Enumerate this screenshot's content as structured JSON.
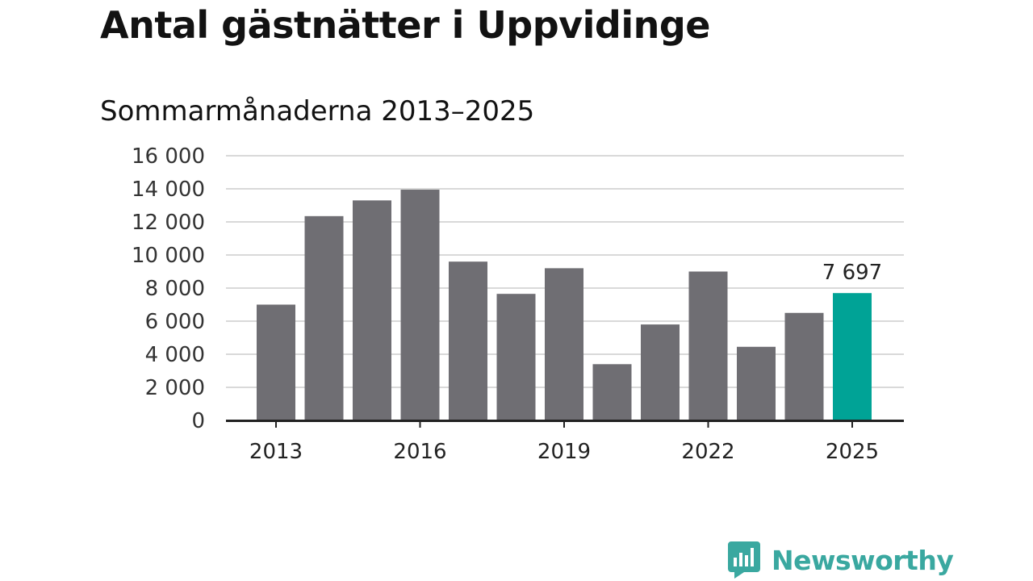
{
  "header": {
    "title": "Antal gästnätter i Uppvidinge",
    "subtitle": "Sommarmånaderna 2013–2025"
  },
  "brand": {
    "name": "Newsworthy",
    "color": "#3aa8a0"
  },
  "colors": {
    "bar": "#6f6e73",
    "highlight": "#00a396",
    "grid": "#d9d9d9",
    "axis": "#222222"
  },
  "chart_data": {
    "type": "bar",
    "title": "Antal gästnätter i Uppvidinge",
    "subtitle": "Sommarmånaderna 2013–2025",
    "xlabel": "",
    "ylabel": "",
    "categories": [
      "2013",
      "2014",
      "2015",
      "2016",
      "2017",
      "2018",
      "2019",
      "2020",
      "2021",
      "2022",
      "2023",
      "2024",
      "2025"
    ],
    "values": [
      7000,
      12350,
      13300,
      13950,
      9600,
      7650,
      9200,
      3400,
      5800,
      9000,
      4450,
      6500,
      7697
    ],
    "highlight_category": "2025",
    "highlight_label": "7 697",
    "x_tick_labels": [
      "2013",
      "2016",
      "2019",
      "2022",
      "2025"
    ],
    "y_ticks": [
      0,
      2000,
      4000,
      6000,
      8000,
      10000,
      12000,
      14000,
      16000
    ],
    "y_tick_labels": [
      "0",
      "2 000",
      "4 000",
      "6 000",
      "8 000",
      "10 000",
      "12 000",
      "14 000",
      "16 000"
    ],
    "ylim": [
      0,
      16000
    ],
    "grid": true,
    "legend": "none"
  }
}
